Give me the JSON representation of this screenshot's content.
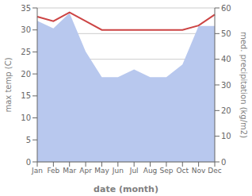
{
  "chart_data": {
    "type": "line",
    "xlabel": "date (month)",
    "ylabel": "max temp (C)",
    "y2label": "med. precipitation (kg/m2)",
    "categories": [
      "Jan",
      "Feb",
      "Mar",
      "Apr",
      "May",
      "Jun",
      "Jul",
      "Aug",
      "Sep",
      "Oct",
      "Nov",
      "Dec"
    ],
    "series": [
      {
        "type": "area",
        "axis": "y2",
        "color": "#b8c8ee",
        "values": [
          55,
          52,
          58,
          43,
          33,
          33,
          36,
          33,
          33,
          38,
          53,
          53
        ]
      },
      {
        "type": "line",
        "axis": "y",
        "color": "#cc4444",
        "values": [
          33.0,
          32.0,
          34.0,
          32.0,
          30.0,
          30.0,
          30.0,
          30.0,
          30.0,
          30.0,
          31.0,
          33.5
        ]
      }
    ],
    "ylim": [
      0,
      35
    ],
    "yticks": [
      0,
      5,
      10,
      15,
      20,
      25,
      30,
      35
    ],
    "y2lim": [
      0,
      60
    ],
    "y2ticks": [
      0,
      10,
      20,
      30,
      40,
      50,
      60
    ],
    "grid": true
  }
}
